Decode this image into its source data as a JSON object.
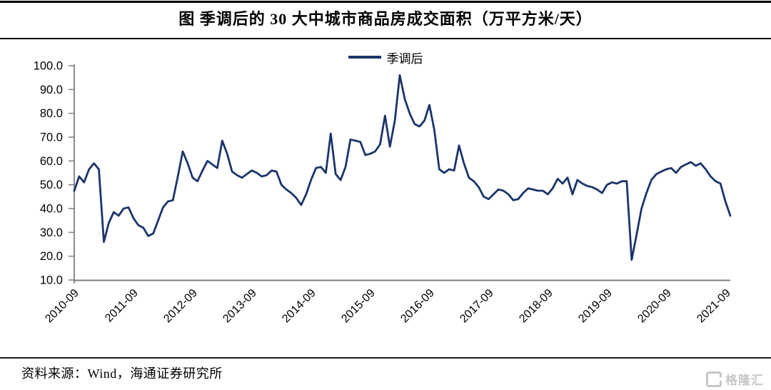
{
  "page": {
    "title": "图 季调后的 30 大中城市商品房成交面积（万平方米/天）"
  },
  "legend": {
    "label": "季调后"
  },
  "footer": {
    "source": "资料来源：Wind，海通证券研究所",
    "logo_text": "格隆汇"
  },
  "colors": {
    "line": "#1a356b",
    "axis": "#7f7f7f",
    "text": "#000000",
    "logo_gray": "#c7c7c7"
  },
  "chart_data": {
    "type": "line",
    "title": "图 季调后的 30 大中城市商品房成交面积（万平方米/天）",
    "xlabel": "",
    "ylabel": "",
    "ylim": [
      10,
      100
    ],
    "yticks": [
      "10.0",
      "20.0",
      "30.0",
      "40.0",
      "50.0",
      "60.0",
      "70.0",
      "80.0",
      "90.0",
      "100.0"
    ],
    "xticks": [
      "2010-09",
      "2011-09",
      "2012-09",
      "2013-09",
      "2014-09",
      "2015-09",
      "2016-09",
      "2017-09",
      "2018-09",
      "2019-09",
      "2020-09",
      "2021-09"
    ],
    "grid": false,
    "legend_position": "top-center",
    "series": [
      {
        "name": "季调后",
        "dates": [
          "2010-09",
          "2010-10",
          "2010-11",
          "2010-12",
          "2011-01",
          "2011-02",
          "2011-03",
          "2011-04",
          "2011-05",
          "2011-06",
          "2011-07",
          "2011-08",
          "2011-09",
          "2011-10",
          "2011-11",
          "2011-12",
          "2012-01",
          "2012-02",
          "2012-03",
          "2012-04",
          "2012-05",
          "2012-06",
          "2012-07",
          "2012-08",
          "2012-09",
          "2012-10",
          "2012-11",
          "2012-12",
          "2013-01",
          "2013-02",
          "2013-03",
          "2013-04",
          "2013-05",
          "2013-06",
          "2013-07",
          "2013-08",
          "2013-09",
          "2013-10",
          "2013-11",
          "2013-12",
          "2014-01",
          "2014-02",
          "2014-03",
          "2014-04",
          "2014-05",
          "2014-06",
          "2014-07",
          "2014-08",
          "2014-09",
          "2014-10",
          "2014-11",
          "2014-12",
          "2015-01",
          "2015-02",
          "2015-03",
          "2015-04",
          "2015-05",
          "2015-06",
          "2015-07",
          "2015-08",
          "2015-09",
          "2015-10",
          "2015-11",
          "2015-12",
          "2016-01",
          "2016-02",
          "2016-03",
          "2016-04",
          "2016-05",
          "2016-06",
          "2016-07",
          "2016-08",
          "2016-09",
          "2016-10",
          "2016-11",
          "2016-12",
          "2017-01",
          "2017-02",
          "2017-03",
          "2017-04",
          "2017-05",
          "2017-06",
          "2017-07",
          "2017-08",
          "2017-09",
          "2017-10",
          "2017-11",
          "2017-12",
          "2018-01",
          "2018-02",
          "2018-03",
          "2018-04",
          "2018-05",
          "2018-06",
          "2018-07",
          "2018-08",
          "2018-09",
          "2018-10",
          "2018-11",
          "2018-12",
          "2019-01",
          "2019-02",
          "2019-03",
          "2019-04",
          "2019-05",
          "2019-06",
          "2019-07",
          "2019-08",
          "2019-09",
          "2019-10",
          "2019-11",
          "2019-12",
          "2020-01",
          "2020-02",
          "2020-03",
          "2020-04",
          "2020-05",
          "2020-06",
          "2020-07",
          "2020-08",
          "2020-09",
          "2020-10",
          "2020-11",
          "2020-12",
          "2021-01",
          "2021-02",
          "2021-03",
          "2021-04",
          "2021-05",
          "2021-06",
          "2021-07",
          "2021-08",
          "2021-09",
          "2021-10"
        ],
        "values": [
          47.5,
          53.5,
          51,
          56.5,
          59,
          56.5,
          26,
          34,
          38.5,
          37,
          40,
          40.5,
          36,
          33,
          32,
          28.5,
          29.5,
          35,
          40.5,
          43,
          43.5,
          53.5,
          64,
          59,
          53,
          51.5,
          56,
          60,
          58.5,
          57,
          68.5,
          63,
          55.5,
          54,
          53,
          54.5,
          56,
          55,
          53.5,
          54,
          56,
          55.5,
          50,
          48,
          46.5,
          44.5,
          41.5,
          46,
          52,
          57,
          57.5,
          55,
          71.5,
          54.5,
          52,
          57.5,
          69,
          68.5,
          68,
          62.5,
          63,
          64,
          67,
          79,
          66,
          77,
          96,
          86,
          80,
          75.5,
          74.5,
          77,
          83.5,
          73,
          56.5,
          55,
          56.5,
          56,
          66.5,
          59,
          53,
          51.5,
          49,
          45,
          44,
          46,
          48,
          47.5,
          46,
          43.5,
          44,
          46.5,
          48.5,
          48,
          47.5,
          47.5,
          46,
          48.5,
          52.5,
          50.5,
          53,
          46,
          52,
          50.5,
          49.5,
          49,
          48,
          46.5,
          50,
          51,
          50.5,
          51.5,
          51.5,
          18.5,
          29,
          40,
          46.5,
          52,
          54.5,
          55.5,
          56.5,
          57,
          55,
          57.5,
          58.5,
          59.5,
          58,
          59,
          56.5,
          53.5,
          51.5,
          50.5,
          43,
          37
        ]
      }
    ]
  }
}
